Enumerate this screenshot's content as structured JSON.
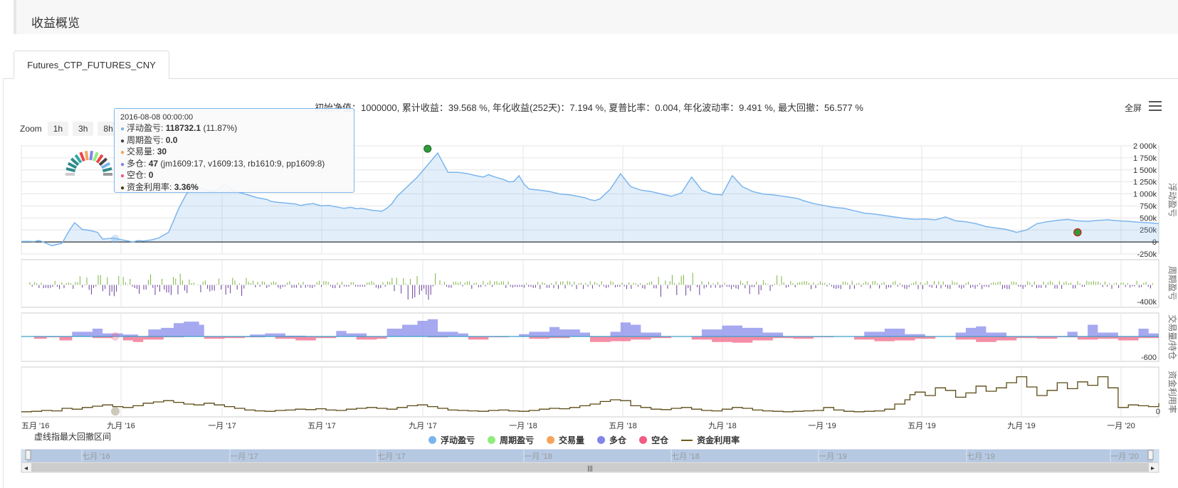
{
  "section": {
    "title": "收益概览"
  },
  "tab": {
    "label": "Futures_CTP_FUTURES_CNY"
  },
  "stats_line": "初始净值：1000000, 累计收益：39.568 %, 年化收益(252天)：7.194 %, 夏普比率：0.004, 年化波动率：9.491 %, 最大回撤：56.577 %",
  "zoom": {
    "label": "Zoom",
    "buttons": [
      "1h",
      "3h",
      "8h"
    ]
  },
  "toolbar": {
    "fullscreen": "全屏"
  },
  "note": "虚线指最大回撤区间",
  "tooltip": {
    "date": "2016-08-08 00:00:00",
    "rows": [
      {
        "color": "#7cb5ec",
        "label": "浮动盈亏: ",
        "value": "118732.1",
        "extra": " (11.87%)"
      },
      {
        "color": "#434348",
        "label": "周期盈亏: ",
        "value": "0.0",
        "extra": ""
      },
      {
        "color": "#f7a35c",
        "label": "交易量: ",
        "value": "30",
        "extra": ""
      },
      {
        "color": "#8085e9",
        "label": "多仓: ",
        "value": "47",
        "extra": " (jm1609:17, v1609:13, rb1610:9, pp1609:8)"
      },
      {
        "color": "#f15c80",
        "label": "空仓: ",
        "value": "0",
        "extra": ""
      },
      {
        "color": "#4a3c10",
        "label": "资金利用率: ",
        "value": "3.36%",
        "extra": ""
      }
    ]
  },
  "legend": [
    {
      "name": "浮动盈亏",
      "color": "#7cb5ec",
      "kind": "dot"
    },
    {
      "name": "周期盈亏",
      "color": "#90ed7d",
      "kind": "dot"
    },
    {
      "name": "交易量",
      "color": "#f7a35c",
      "kind": "dot"
    },
    {
      "name": "多仓",
      "color": "#8085e9",
      "kind": "dot"
    },
    {
      "name": "空仓",
      "color": "#f15c80",
      "kind": "dot"
    },
    {
      "name": "资金利用率",
      "color": "#6b5a1e",
      "kind": "line"
    }
  ],
  "colors": {
    "profit": "#7cb5ec",
    "period_pos": "#7cb342",
    "period_neg": "#6a3d9a",
    "long": "#8085e9",
    "short": "#f15c80",
    "utilization": "#5a4a14",
    "grid": "#e6e6e6",
    "navigator": "#cfe0ee"
  },
  "chart_data": {
    "type": "line",
    "x_ticks": [
      "五月 '16",
      "九月 '16",
      "一月 '17",
      "五月 '17",
      "九月 '17",
      "一月 '18",
      "五月 '18",
      "九月 '18",
      "一月 '19",
      "五月 '19",
      "九月 '19",
      "一月 '20"
    ],
    "navigator_ticks": [
      "七月 '16",
      "一月 '17",
      "七月 '17",
      "一月 '18",
      "七月 '18",
      "一月 '19",
      "七月 '19",
      "一月 '20"
    ],
    "panes": [
      {
        "name": "浮动盈亏",
        "axis_title": "浮动盈亏",
        "y_ticks": [
          "2 000k",
          "1 750k",
          "1 500k",
          "1 250k",
          "1 000k",
          "750k",
          "500k",
          "250k",
          "0",
          "-250k"
        ],
        "ylim": [
          -250000,
          2000000
        ],
        "series": [
          {
            "name": "浮动盈亏",
            "type": "area",
            "x": [
              0,
              3,
              5,
              7,
              9,
              12,
              16,
              19,
              21,
              24,
              27,
              30,
              32,
              36,
              40,
              44,
              46,
              48,
              51,
              54,
              58,
              62,
              65,
              68,
              72,
              76,
              80,
              84,
              88,
              91,
              93,
              95,
              97,
              98,
              100,
              102,
              104,
              106,
              108,
              110,
              112,
              115,
              118,
              121,
              124,
              127,
              130,
              132,
              134,
              136,
              138,
              140,
              142,
              144,
              146,
              148,
              152,
              156,
              160,
              164,
              168,
              172,
              176,
              179,
              182,
              184,
              186,
              188,
              190,
              192,
              194,
              196,
              198,
              200,
              204,
              208,
              212,
              216,
              219,
              222,
              224,
              226,
              228,
              232,
              236,
              240,
              244,
              248,
              252,
              256,
              260,
              264,
              268,
              272,
              276,
              280,
              284,
              288,
              292,
              296,
              300,
              304,
              306,
              308,
              312,
              316,
              320,
              324,
              328,
              332,
              336,
              340,
              344,
              348,
              350,
              352,
              356,
              360,
              364,
              368,
              372,
              376,
              380,
              384,
              388,
              392,
              396,
              400,
              404,
              408,
              412,
              416,
              420,
              424,
              428,
              432,
              436,
              440,
              444,
              448
            ],
            "y": [
              10000,
              12000,
              8000,
              30000,
              -10000,
              -80000,
              -30000,
              250000,
              400000,
              260000,
              240000,
              200000,
              60000,
              80000,
              40000,
              0,
              30000,
              20000,
              40000,
              80000,
              200000,
              700000,
              1000000,
              1150000,
              1100000,
              1050000,
              1200000,
              1050000,
              1000000,
              950000,
              920000,
              900000,
              880000,
              850000,
              830000,
              820000,
              810000,
              800000,
              790000,
              760000,
              780000,
              800000,
              750000,
              760000,
              730000,
              700000,
              720000,
              690000,
              700000,
              680000,
              660000,
              650000,
              640000,
              700000,
              800000,
              950000,
              1150000,
              1350000,
              1600000,
              1850000,
              1450000,
              1450000,
              1420000,
              1380000,
              1350000,
              1400000,
              1360000,
              1330000,
              1300000,
              1250000,
              1260000,
              1380000,
              1200000,
              1100000,
              1080000,
              1050000,
              1000000,
              980000,
              950000,
              920000,
              880000,
              860000,
              900000,
              1100000,
              1420000,
              1150000,
              1080000,
              1050000,
              1000000,
              950000,
              1020000,
              1350000,
              1080000,
              1000000,
              980000,
              1380000,
              1150000,
              1050000,
              1000000,
              980000,
              950000,
              920000,
              900000,
              860000,
              800000,
              760000,
              720000,
              700000,
              650000,
              600000,
              580000,
              550000,
              520000,
              490000,
              480000,
              470000,
              480000,
              460000,
              520000,
              440000,
              420000,
              380000,
              320000,
              290000,
              260000,
              200000,
              250000,
              380000,
              420000,
              450000,
              470000,
              440000,
              430000,
              450000,
              460000,
              440000,
              430000,
              410000,
              400000,
              380000
            ]
          }
        ]
      },
      {
        "name": "周期盈亏",
        "axis_title": "周期盈亏",
        "y_ticks": [
          "-400k"
        ],
        "series": [
          {
            "name": "周期盈亏",
            "type": "column"
          }
        ]
      },
      {
        "name": "交易量/持仓",
        "axis_title": "交易量/持仓",
        "y_ticks": [
          "-600"
        ],
        "series": [
          {
            "name": "多仓",
            "type": "area",
            "x": [
              0,
              10,
              15,
              20,
              28,
              32,
              40,
              46,
              50,
              55,
              60,
              64,
              70,
              72,
              80,
              90,
              96,
              104,
              112,
              120,
              124,
              128,
              136,
              140,
              144,
              150,
              156,
              160,
              164,
              172,
              176,
              180,
              188,
              196,
              200,
              208,
              212,
              220,
              224,
              232,
              236,
              240,
              244,
              252,
              260,
              268,
              276,
              284,
              292,
              300,
              308,
              316,
              324,
              332,
              340,
              348,
              356,
              364,
              368,
              372,
              376,
              380,
              388,
              396,
              404,
              412,
              416,
              420,
              424,
              432,
              440,
              444,
              448
            ],
            "y": [
              0,
              0,
              0,
              12,
              20,
              8,
              5,
              0,
              18,
              22,
              34,
              38,
              30,
              0,
              0,
              5,
              8,
              2,
              0,
              0,
              14,
              8,
              0,
              0,
              20,
              30,
              40,
              44,
              12,
              8,
              0,
              0,
              0,
              6,
              12,
              24,
              18,
              10,
              0,
              12,
              36,
              30,
              10,
              0,
              0,
              18,
              28,
              22,
              10,
              0,
              0,
              0,
              0,
              12,
              20,
              6,
              0,
              0,
              10,
              22,
              26,
              10,
              0,
              0,
              0,
              12,
              0,
              30,
              10,
              0,
              20,
              8,
              0
            ]
          },
          {
            "name": "空仓",
            "type": "area",
            "x": [
              0,
              5,
              10,
              15,
              20,
              28,
              36,
              40,
              44,
              48,
              56,
              64,
              72,
              80,
              88,
              96,
              100,
              108,
              116,
              124,
              132,
              140,
              144,
              152,
              160,
              168,
              176,
              184,
              192,
              200,
              208,
              216,
              224,
              232,
              240,
              248,
              256,
              264,
              272,
              280,
              288,
              296,
              304,
              312,
              320,
              328,
              336,
              344,
              352,
              360,
              368,
              376,
              384,
              392,
              400,
              408,
              416,
              424,
              432,
              440,
              448
            ],
            "y": [
              0,
              -6,
              -2,
              -10,
              0,
              -4,
              0,
              -10,
              -14,
              -8,
              -2,
              0,
              -6,
              -4,
              -2,
              0,
              -6,
              -10,
              -4,
              0,
              -8,
              -6,
              0,
              0,
              -2,
              0,
              -8,
              -2,
              0,
              -6,
              -4,
              0,
              -14,
              -12,
              -8,
              -4,
              0,
              -8,
              -14,
              -16,
              -10,
              -4,
              -6,
              -2,
              0,
              -8,
              -12,
              -10,
              -6,
              0,
              -8,
              -14,
              -10,
              -4,
              -6,
              -2,
              -8,
              -6,
              -10,
              -4,
              0
            ]
          }
        ]
      },
      {
        "name": "资金利用率",
        "axis_title": "资金利用率",
        "y_ticks": [
          "0"
        ],
        "series": [
          {
            "name": "资金利用率",
            "type": "line",
            "x": [
              0,
              4,
              8,
              12,
              16,
              20,
              24,
              28,
              32,
              36,
              40,
              44,
              48,
              52,
              56,
              60,
              64,
              68,
              72,
              76,
              80,
              84,
              88,
              92,
              96,
              100,
              104,
              108,
              112,
              116,
              120,
              124,
              128,
              132,
              136,
              140,
              144,
              148,
              152,
              156,
              160,
              164,
              168,
              172,
              176,
              180,
              184,
              188,
              192,
              196,
              200,
              204,
              208,
              212,
              216,
              220,
              224,
              228,
              232,
              236,
              240,
              244,
              248,
              252,
              256,
              260,
              264,
              268,
              272,
              276,
              280,
              284,
              288,
              292,
              296,
              300,
              304,
              308,
              312,
              316,
              320,
              324,
              328,
              332,
              336,
              340,
              344,
              348,
              350,
              352,
              356,
              360,
              364,
              368,
              372,
              376,
              380,
              384,
              388,
              392,
              396,
              400,
              404,
              408,
              412,
              416,
              420,
              424,
              428,
              432,
              436,
              440,
              444,
              448
            ],
            "y": [
              2,
              3,
              5,
              4,
              10,
              8,
              12,
              15,
              18,
              14,
              12,
              16,
              22,
              25,
              28,
              24,
              20,
              18,
              22,
              18,
              14,
              10,
              6,
              4,
              3,
              5,
              6,
              8,
              7,
              9,
              6,
              5,
              8,
              10,
              12,
              10,
              8,
              12,
              16,
              18,
              14,
              10,
              6,
              5,
              4,
              3,
              5,
              6,
              4,
              3,
              5,
              8,
              10,
              9,
              12,
              16,
              20,
              26,
              30,
              28,
              16,
              12,
              8,
              7,
              10,
              12,
              8,
              5,
              4,
              8,
              12,
              10,
              6,
              4,
              3,
              2,
              3,
              4,
              5,
              12,
              6,
              3,
              2,
              3,
              4,
              8,
              20,
              30,
              42,
              48,
              40,
              58,
              52,
              36,
              46,
              62,
              50,
              58,
              70,
              84,
              60,
              40,
              52,
              70,
              56,
              72,
              64,
              84,
              58,
              12,
              18,
              16,
              14,
              22
            ]
          }
        ]
      }
    ]
  }
}
